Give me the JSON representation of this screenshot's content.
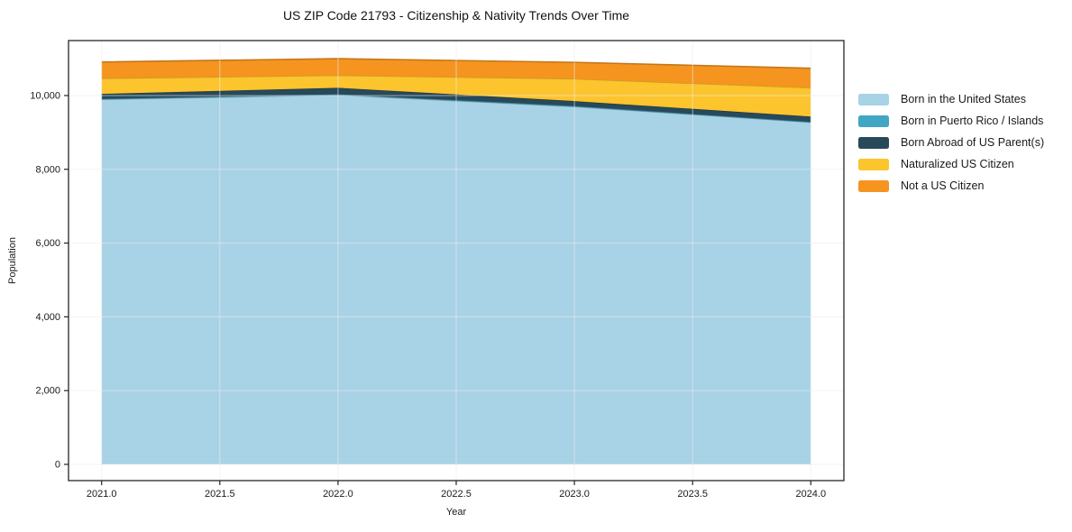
{
  "title": "US ZIP Code 21793 - Citizenship & Nativity Trends Over Time",
  "chart_data": {
    "type": "area",
    "stacked": true,
    "title": "US ZIP Code 21793 - Citizenship & Nativity Trends Over Time",
    "xlabel": "Year",
    "ylabel": "Population",
    "x": [
      2021,
      2022,
      2023,
      2024
    ],
    "series": [
      {
        "name": "Born in the United States",
        "color": "#a8d2e6",
        "values": [
          9895,
          10015,
          9700,
          9275
        ]
      },
      {
        "name": "Born in Puerto Rico / Islands",
        "color": "#41a6c4",
        "values": [
          15,
          20,
          15,
          10
        ]
      },
      {
        "name": "Born Abroad of US Parent(s)",
        "color": "#28495a",
        "values": [
          135,
          175,
          135,
          145
        ]
      },
      {
        "name": "Naturalized US Citizen",
        "color": "#fcc42d",
        "values": [
          420,
          340,
          605,
          780
        ]
      },
      {
        "name": "Not a US Citizen",
        "color": "#f5941f",
        "values": [
          445,
          450,
          445,
          530
        ]
      }
    ],
    "stack_totals": [
      10910,
      11000,
      10900,
      10740
    ],
    "x_tick_values": [
      2021.0,
      2021.5,
      2022.0,
      2022.5,
      2023.0,
      2023.5,
      2024.0
    ],
    "x_tick_labels": [
      "2021.0",
      "2021.5",
      "2022.0",
      "2022.5",
      "2023.0",
      "2023.5",
      "2024.0"
    ],
    "y_tick_values": [
      0,
      2000,
      4000,
      6000,
      8000,
      10000
    ],
    "y_tick_labels": [
      "0",
      "2,000",
      "4,000",
      "6,000",
      "8,000",
      "10,000"
    ],
    "xlim": [
      2020.86,
      2024.14
    ],
    "ylim": [
      -440,
      11490
    ],
    "grid": true,
    "legend_position": "right-outside",
    "background_color": "#ffffff",
    "frame_color": "#262626",
    "grid_color": "#ececec",
    "text_color": "#1a1a1a"
  }
}
